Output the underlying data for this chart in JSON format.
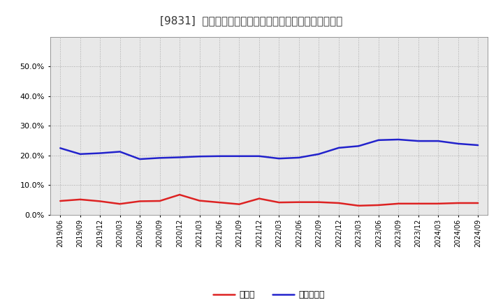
{
  "title": "[9831]  現須金、有利子負債の総資産に対する比率の推移",
  "ylim": [
    0.0,
    0.6
  ],
  "yticks": [
    0.0,
    0.1,
    0.2,
    0.3,
    0.4,
    0.5
  ],
  "background_color": "#ffffff",
  "plot_bg_color": "#e8e8e8",
  "grid_color": "#aaaaaa",
  "dates": [
    "2019/06",
    "2019/09",
    "2019/12",
    "2020/03",
    "2020/06",
    "2020/09",
    "2020/12",
    "2021/03",
    "2021/06",
    "2021/09",
    "2021/12",
    "2022/03",
    "2022/06",
    "2022/09",
    "2022/12",
    "2023/03",
    "2023/06",
    "2023/09",
    "2023/12",
    "2024/03",
    "2024/06",
    "2024/09"
  ],
  "cash": [
    0.047,
    0.052,
    0.046,
    0.037,
    0.046,
    0.047,
    0.068,
    0.048,
    0.042,
    0.036,
    0.055,
    0.042,
    0.043,
    0.043,
    0.04,
    0.031,
    0.033,
    0.038,
    0.038,
    0.038,
    0.04,
    0.04
  ],
  "debt": [
    0.225,
    0.205,
    0.208,
    0.213,
    0.188,
    0.192,
    0.194,
    0.197,
    0.198,
    0.198,
    0.198,
    0.19,
    0.193,
    0.205,
    0.226,
    0.232,
    0.252,
    0.254,
    0.249,
    0.249,
    0.24,
    0.235
  ],
  "cash_color": "#dd2222",
  "debt_color": "#2222cc",
  "cash_label": "現須金",
  "debt_label": "有利子負債",
  "line_width": 1.8
}
